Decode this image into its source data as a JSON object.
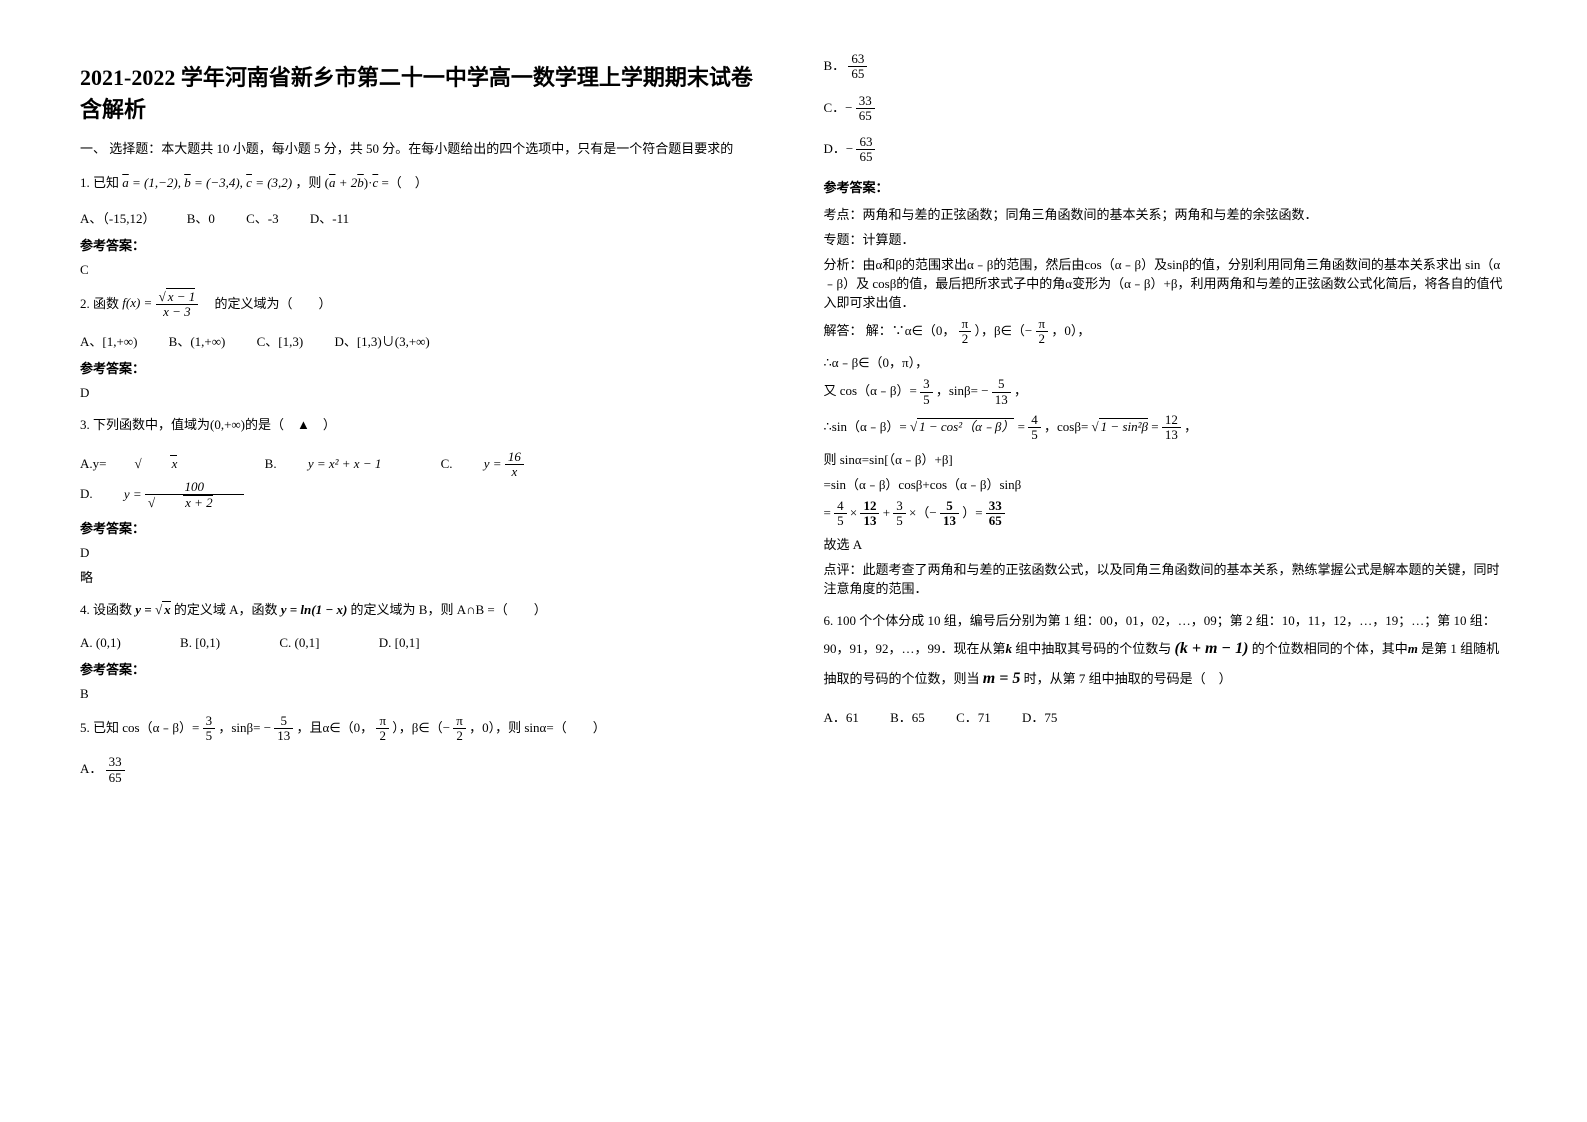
{
  "title": "2021-2022 学年河南省新乡市第二十一中学高一数学理上学期期末试卷含解析",
  "section1_head": "一、 选择题：本大题共 10 小题，每小题 5 分，共 50 分。在每小题给出的四个选项中，只有是一个符合题目要求的",
  "q1": {
    "stem_pre": "1. 已知",
    "stem_mid": "a = (1,−2), b = (−3,4), c = (3,2)",
    "stem_post": "，则 (a + 2b)·c =（　）",
    "opts": {
      "A": "A、（-15,12）",
      "B": "B、0",
      "C": "C、-3",
      "D": "D、-11"
    },
    "ans_label": "参考答案：",
    "ans": "C"
  },
  "q2": {
    "stem_pre": "2. 函数",
    "stem_post": "　的定义域为（　　）",
    "opts": {
      "A": "A、[1,+∞)",
      "B": "B、(1,+∞)",
      "C": "C、[1,3)",
      "D": "D、[1,3)∪(3,+∞)"
    },
    "ans_label": "参考答案：",
    "ans": "D"
  },
  "q3": {
    "stem": "3. 下列函数中，值域为(0,+∞)的是（　▲　）",
    "optA_pre": "A.y=",
    "optB_pre": "B.",
    "optB_eq": "y = x² + x − 1",
    "optC_pre": "C.",
    "optD_pre": "D.",
    "ans_label": "参考答案：",
    "ans": "D",
    "note": "略"
  },
  "q4": {
    "stem_a": "4. 设函数 ",
    "stem_b": " 的定义域 A，函数 ",
    "stem_c": " 的定义域为 B，则 A∩B =（　　）",
    "y1": "y = √x",
    "y2": "y = ln(1 − x)",
    "opts": {
      "A": "A.  (0,1)",
      "B": "B.  [0,1)",
      "C": "C.  (0,1]",
      "D": "D.  [0,1]"
    },
    "ans_label": "参考答案：",
    "ans": "B"
  },
  "q5": {
    "stem_a": "5. 已知 cos（α﹣β）=",
    "stem_b": "，sinβ= −",
    "stem_c": "，且α∈（0，",
    "stem_d": "），β∈（−",
    "stem_e": "，0），则 sinα=（　　）",
    "f1n": "3",
    "f1d": "5",
    "f2n": "5",
    "f2d": "13",
    "f3n": "π",
    "f3d": "2",
    "f4n": "π",
    "f4d": "2",
    "optA_pre": "A．",
    "optB_pre": "B．",
    "optC_pre": "C．−",
    "optD_pre": "D．−",
    "oAn": "33",
    "oAd": "65",
    "oBn": "63",
    "oBd": "65",
    "oCn": "33",
    "oCd": "65",
    "oDn": "63",
    "oDd": "65",
    "ans_label": "参考答案：",
    "topic_label": "考点：",
    "topic": "两角和与差的正弦函数；同角三角函数间的基本关系；两角和与差的余弦函数．",
    "special_label": "专题：",
    "special": "计算题．",
    "analysis_label": "分析：",
    "analysis": "由α和β的范围求出α﹣β的范围，然后由cos（α﹣β）及sinβ的值，分别利用同角三角函数间的基本关系求出 sin（α﹣β）及 cosβ的值，最后把所求式子中的角α变形为（α﹣β）+β，利用两角和与差的正弦函数公式化简后，将各自的值代入即可求出值．",
    "solve_label": "解答：",
    "solve_pre": "解：∵α∈（0，",
    "s1n": "π",
    "s1d": "2",
    "solve_mid1": "），β∈（−",
    "s2n": "π",
    "s2d": "2",
    "solve_mid2": "，0），",
    "line2": "∴α﹣β∈（0，π），",
    "line3a": "又 cos（α﹣β）=",
    "l3f1n": "3",
    "l3f1d": "5",
    "line3b": "，sinβ= −",
    "l3f2n": "5",
    "l3f2d": "13",
    "line3c": "，",
    "line4a": "∴sin（α﹣β）=",
    "l4r1": "1 − cos²（α﹣β）",
    "line4b": " =",
    "l4f1n": "4",
    "l4f1d": "5",
    "line4c": "，cosβ=",
    "l4r2": "1 − sin²β",
    "line4d": " =",
    "l4f2n": "12",
    "l4f2d": "13",
    "line4e": "，",
    "line5": "则 sinα=sin[（α﹣β）+β]",
    "line6": "=sin（α﹣β）cosβ+cos（α﹣β）sinβ",
    "line7a": "=",
    "l7f1n": "4",
    "l7f1d": "5",
    "line7b": "×",
    "l7f2n": "12",
    "l7f2d": "13",
    "line7c": "+",
    "l7f3n": "3",
    "l7f3d": "5",
    "line7d": "×（−",
    "l7f4n": "5",
    "l7f4d": "13",
    "line7e": "）=",
    "l7f5n": "33",
    "l7f5d": "65",
    "conclusion": "故选 A",
    "comment_label": "点评：",
    "comment": "此题考查了两角和与差的正弦函数公式，以及同角三角函数间的基本关系，熟练掌握公式是解本题的关键，同时注意角度的范围．"
  },
  "q6": {
    "stem_a": "6. 100 个个体分成 10 组，编号后分别为第 1 组：00，01，02，…，09；第 2 组：10，11，12，…，19；…；第 10 组：90，91，92，…，99．现在从第",
    "stem_b": "组中抽取其号码的个位数与",
    "stem_c": "的个位数相同的个体，其中",
    "stem_d": "是第 1 组随机抽取的号码的个位数，则当",
    "stem_e": "时，从第 7 组中抽取的号码是（　）",
    "k": "k",
    "km1": "(k + m − 1)",
    "m": "m",
    "m5": "m = 5",
    "opts": {
      "A": "A．61",
      "B": "B．65",
      "C": "C．71",
      "D": "D．75"
    }
  }
}
